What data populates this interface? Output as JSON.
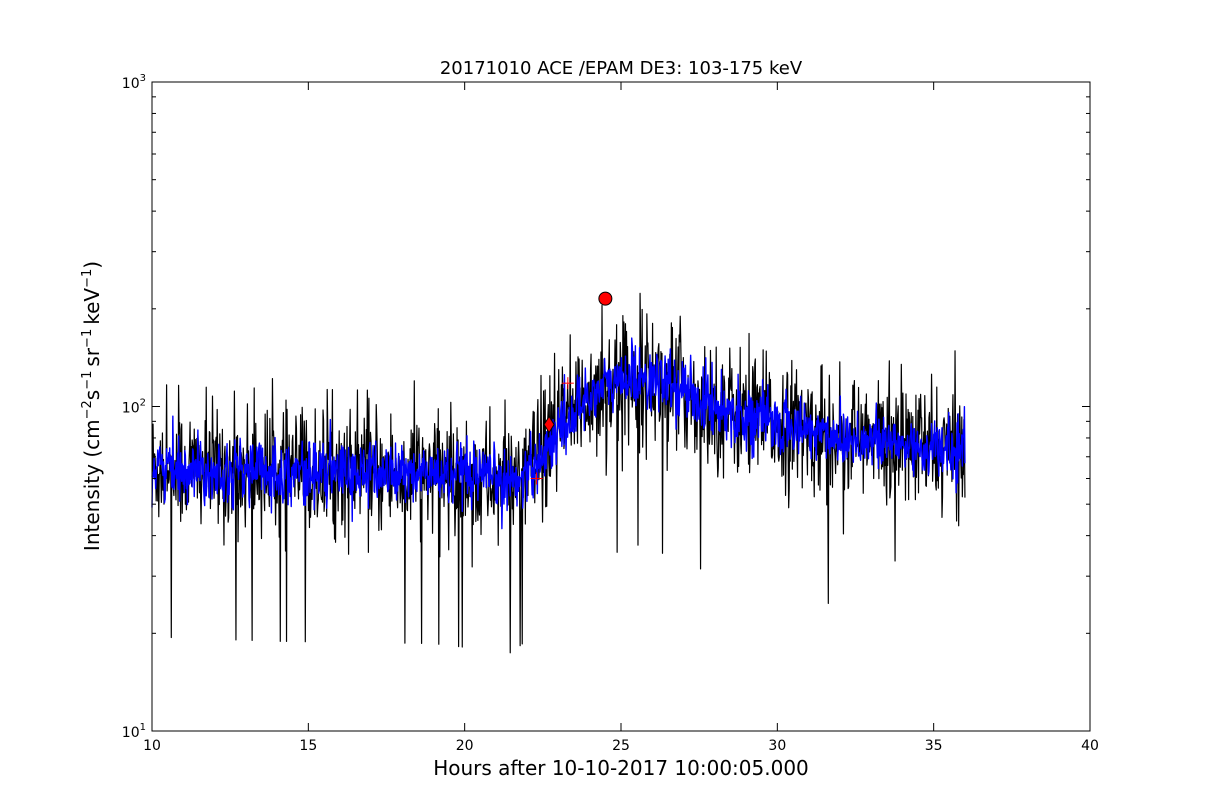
{
  "chart_data": {
    "type": "line",
    "title": "20171010 ACE /EPAM DE3: 103-175 keV",
    "xlabel": "Hours after 10-10-2017 10:00:05.000",
    "ylabel": {
      "prefix": "Intensity (cm",
      "exp1": "−2",
      "mid1": "s",
      "exp2": "−1",
      "mid2": "sr",
      "exp3": "−1",
      "mid3": "keV",
      "exp4": "−1",
      "suffix": ")"
    },
    "xlim": [
      10,
      40
    ],
    "ylim": [
      10,
      1000
    ],
    "yscale": "log",
    "grid": false,
    "x_ticks": [
      {
        "value": 10,
        "label": "10"
      },
      {
        "value": 15,
        "label": "15"
      },
      {
        "value": 20,
        "label": "20"
      },
      {
        "value": 25,
        "label": "25"
      },
      {
        "value": 30,
        "label": "30"
      },
      {
        "value": 35,
        "label": "35"
      },
      {
        "value": 40,
        "label": "40"
      }
    ],
    "y_ticks": [
      {
        "value": 10,
        "base": "10",
        "exp": "1"
      },
      {
        "value": 100,
        "base": "10",
        "exp": "2"
      },
      {
        "value": 1000,
        "base": "10",
        "exp": "3"
      }
    ],
    "series": [
      {
        "color": "#000000",
        "profile": [
          [
            10.0,
            65
          ],
          [
            14.0,
            63
          ],
          [
            19.0,
            62
          ],
          [
            21.5,
            58
          ],
          [
            22.5,
            70
          ],
          [
            23.0,
            85
          ],
          [
            23.5,
            95
          ],
          [
            24.0,
            110
          ],
          [
            25.5,
            125
          ],
          [
            27.0,
            112
          ],
          [
            28.0,
            100
          ],
          [
            30.0,
            88
          ],
          [
            33.0,
            78
          ],
          [
            36.0,
            72
          ]
        ],
        "x_end": 36.0,
        "approx_samples": 1560
      },
      {
        "color": "#0000ff",
        "profile": [
          [
            10.0,
            65
          ],
          [
            14.0,
            63
          ],
          [
            19.0,
            62
          ],
          [
            21.5,
            58
          ],
          [
            22.5,
            70
          ],
          [
            23.0,
            85
          ],
          [
            23.5,
            95
          ],
          [
            24.0,
            110
          ],
          [
            25.5,
            125
          ],
          [
            27.0,
            112
          ],
          [
            28.0,
            100
          ],
          [
            30.0,
            88
          ],
          [
            33.0,
            78
          ],
          [
            36.0,
            72
          ]
        ],
        "x_end": 36.0,
        "approx_samples": 1560
      }
    ],
    "markers": [
      {
        "shape": "diamond",
        "x": 22.7,
        "y": 88,
        "color": "#ff0000"
      },
      {
        "shape": "circle",
        "x": 24.5,
        "y": 215,
        "color": "#ff0000"
      },
      {
        "shape": "plus",
        "x": 22.3,
        "y": 60,
        "color": "#ff0000"
      },
      {
        "shape": "plus",
        "x": 23.3,
        "y": 118,
        "color": "#ff0000"
      }
    ]
  }
}
